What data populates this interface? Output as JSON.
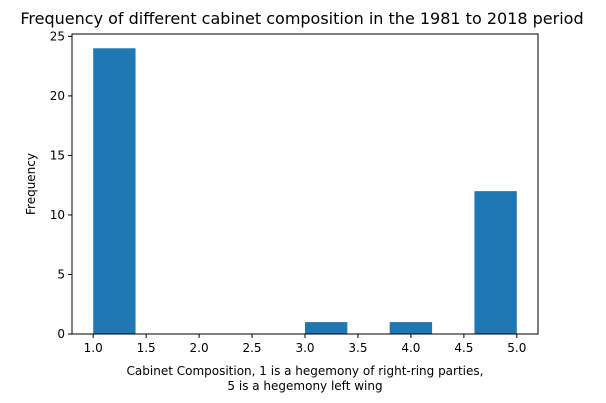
{
  "chart_data": {
    "type": "bar",
    "subtype": "histogram",
    "title": "Frequency of different cabinet composition in the 1981 to 2018 period",
    "xlabel": [
      "Cabinet Composition, 1 is a hegemony of right-ring parties,",
      "5 is a hegemony left wing"
    ],
    "ylabel": "Frequency",
    "xlim": [
      0.8,
      5.2
    ],
    "ylim": [
      0,
      25.2
    ],
    "xticks": [
      1.0,
      1.5,
      2.0,
      2.5,
      3.0,
      3.5,
      4.0,
      4.5,
      5.0
    ],
    "xtick_labels": [
      "1.0",
      "1.5",
      "2.0",
      "2.5",
      "3.0",
      "3.5",
      "4.0",
      "4.5",
      "5.0"
    ],
    "yticks": [
      0,
      5,
      10,
      15,
      20,
      25
    ],
    "ytick_labels": [
      "0",
      "5",
      "10",
      "15",
      "20",
      "25"
    ],
    "bins": [
      {
        "x0": 1.0,
        "x1": 1.4,
        "count": 24
      },
      {
        "x0": 1.4,
        "x1": 1.8,
        "count": 0
      },
      {
        "x0": 1.8,
        "x1": 2.2,
        "count": 0
      },
      {
        "x0": 2.2,
        "x1": 2.6,
        "count": 0
      },
      {
        "x0": 2.6,
        "x1": 3.0,
        "count": 0
      },
      {
        "x0": 3.0,
        "x1": 3.4,
        "count": 1
      },
      {
        "x0": 3.4,
        "x1": 3.8,
        "count": 0
      },
      {
        "x0": 3.8,
        "x1": 4.2,
        "count": 1
      },
      {
        "x0": 4.2,
        "x1": 4.6,
        "count": 0
      },
      {
        "x0": 4.6,
        "x1": 5.0,
        "count": 12
      }
    ],
    "bar_color": "#1f77b4",
    "grid": false,
    "legend": "none"
  }
}
